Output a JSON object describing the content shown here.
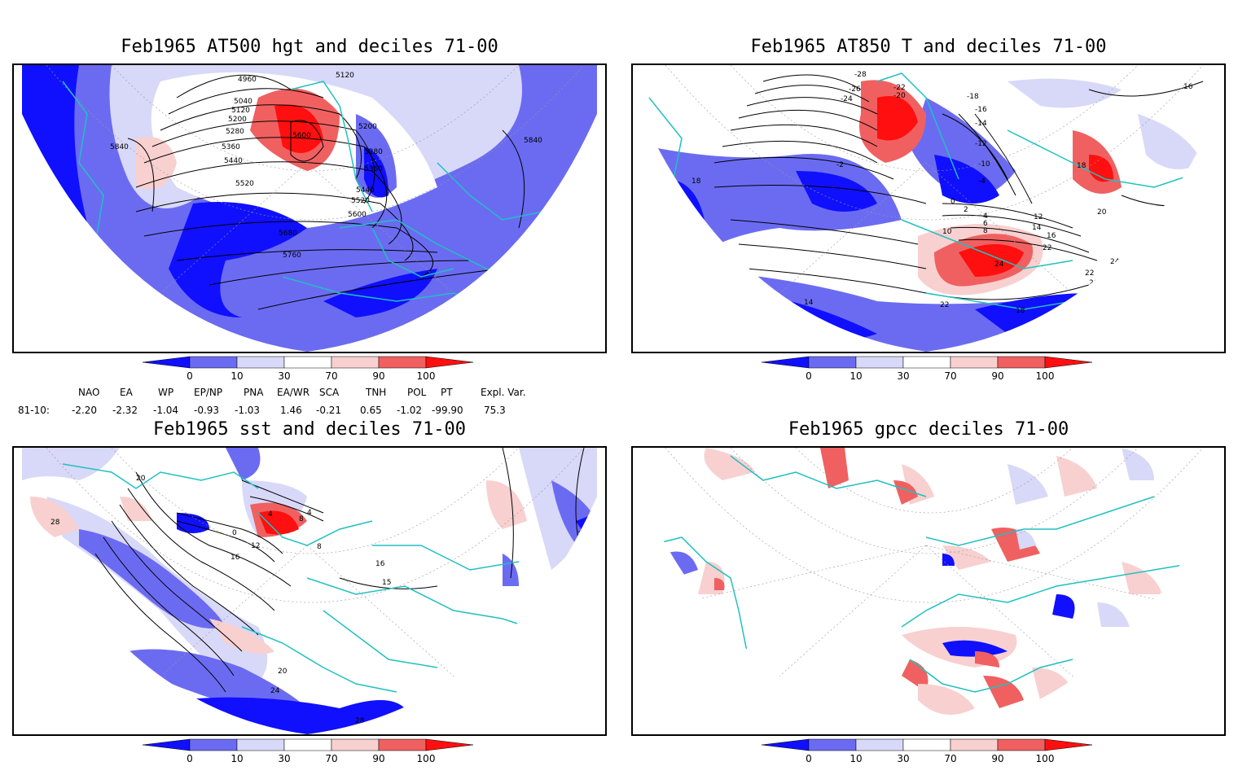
{
  "panels": [
    {
      "title": "Feb1965 AT500 hgt and deciles 71-00",
      "contour_labels": [
        "4960",
        "5120",
        "5040",
        "5120",
        "5200",
        "5280",
        "5360",
        "5440",
        "5520",
        "5600",
        "5680",
        "5760",
        "5840",
        "5840",
        "5200",
        "5280",
        "5360",
        "5440",
        "5520",
        "5600"
      ]
    },
    {
      "title": "Feb1965 AT850 T and deciles 71-00",
      "contour_labels": [
        "-28",
        "-26",
        "-24",
        "-22",
        "-20",
        "-18",
        "-16",
        "-14",
        "-12",
        "-10",
        "-4",
        "-2",
        "0",
        "2",
        "4",
        "6",
        "8",
        "10",
        "12",
        "14",
        "16",
        "18",
        "20",
        "22",
        "24",
        "16",
        "18",
        "14",
        "18",
        "16",
        "18",
        "22",
        "20",
        "22",
        "24"
      ]
    },
    {
      "title": "Feb1965 sst and deciles 71-00",
      "contour_labels": [
        "20",
        "28",
        "0",
        "4",
        "8",
        "12",
        "16",
        "4",
        "8",
        "15",
        "16",
        "20",
        "24",
        "28",
        "28"
      ]
    },
    {
      "title": "Feb1965 gpcc deciles 71-00",
      "contour_labels": []
    }
  ],
  "colorbar": {
    "ticks": [
      "0",
      "10",
      "30",
      "70",
      "90",
      "100"
    ],
    "colors": [
      "#1010ff",
      "#6b6bf2",
      "#d8d8f8",
      "#ffffff",
      "#f8d0d0",
      "#f06060",
      "#ff0f0f"
    ]
  },
  "indices": {
    "headers": [
      "NAO",
      "EA",
      "WP",
      "EP/NP",
      "PNA",
      "EA/WR",
      "SCA",
      "TNH",
      "POL",
      "PT",
      "Expl. Var."
    ],
    "row_label": "81-10:",
    "values": [
      "-2.20",
      "-2.32",
      "-1.04",
      "-0.93",
      "-1.03",
      "1.46",
      "-0.21",
      "0.65",
      "-1.02",
      "-99.90",
      "75.3"
    ]
  }
}
